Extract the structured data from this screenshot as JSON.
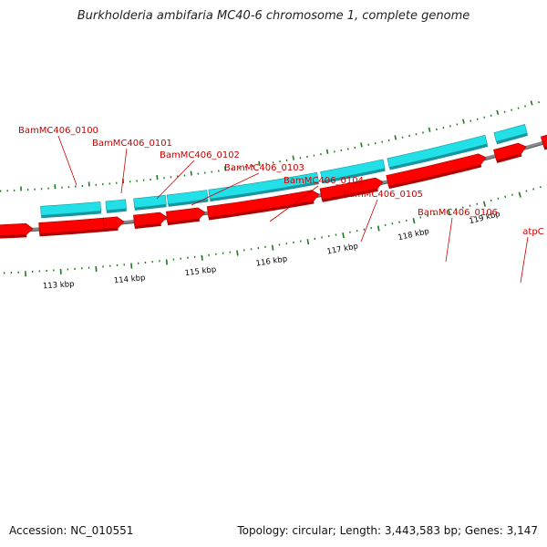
{
  "title": "Burkholderia ambifaria MC40-6 chromosome 1, complete genome",
  "footer": {
    "accession": "Accession: NC_010551",
    "summary": "Topology: circular; Length: 3,443,583 bp; Genes: 3,147"
  },
  "colors": {
    "forward_track": "#22e0e8",
    "reverse_track": "#ff0000",
    "gene_label": "#cc0000",
    "backbone": "#888888",
    "ticks": "#1a7a1a",
    "tick_label": "#000000"
  },
  "scale_labels": [
    "113 kbp",
    "114 kbp",
    "115 kbp",
    "116 kbp",
    "117 kbp",
    "118 kbp",
    "119 kbp"
  ],
  "gene_labels": [
    "BamMC406_0100",
    "BamMC406_0101",
    "BamMC406_0102",
    "BamMC406_0103",
    "BamMC406_0104",
    "BamMC406_0105",
    "BamMC406_0106",
    "atpC"
  ]
}
